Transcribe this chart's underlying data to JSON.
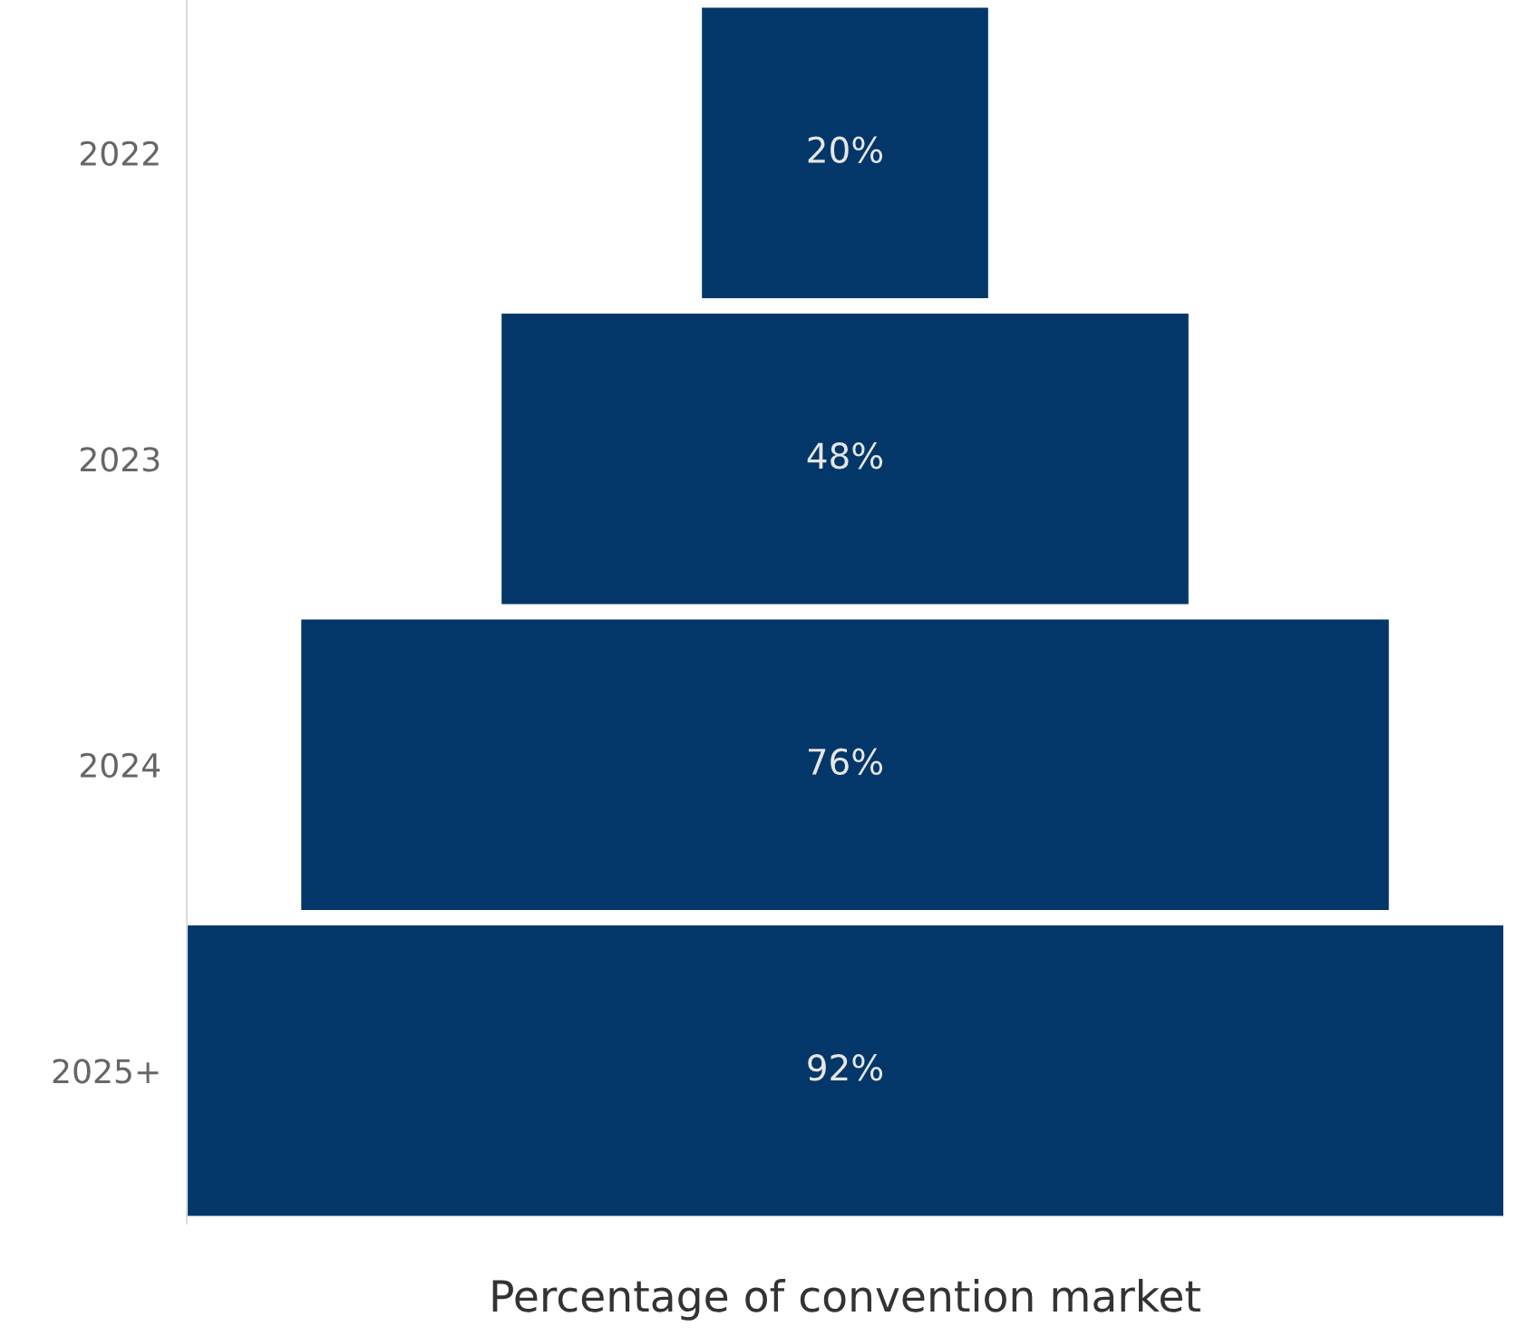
{
  "chart_data": {
    "type": "other",
    "xlabel": "Percentage of convention market",
    "categories": [
      "2022",
      "2023",
      "2024",
      "2025+"
    ],
    "values": [
      20,
      48,
      76,
      92
    ],
    "color": "#033769",
    "data_labels": true,
    "value_labels": [
      "20%",
      "48%",
      "76%",
      "92%"
    ]
  }
}
